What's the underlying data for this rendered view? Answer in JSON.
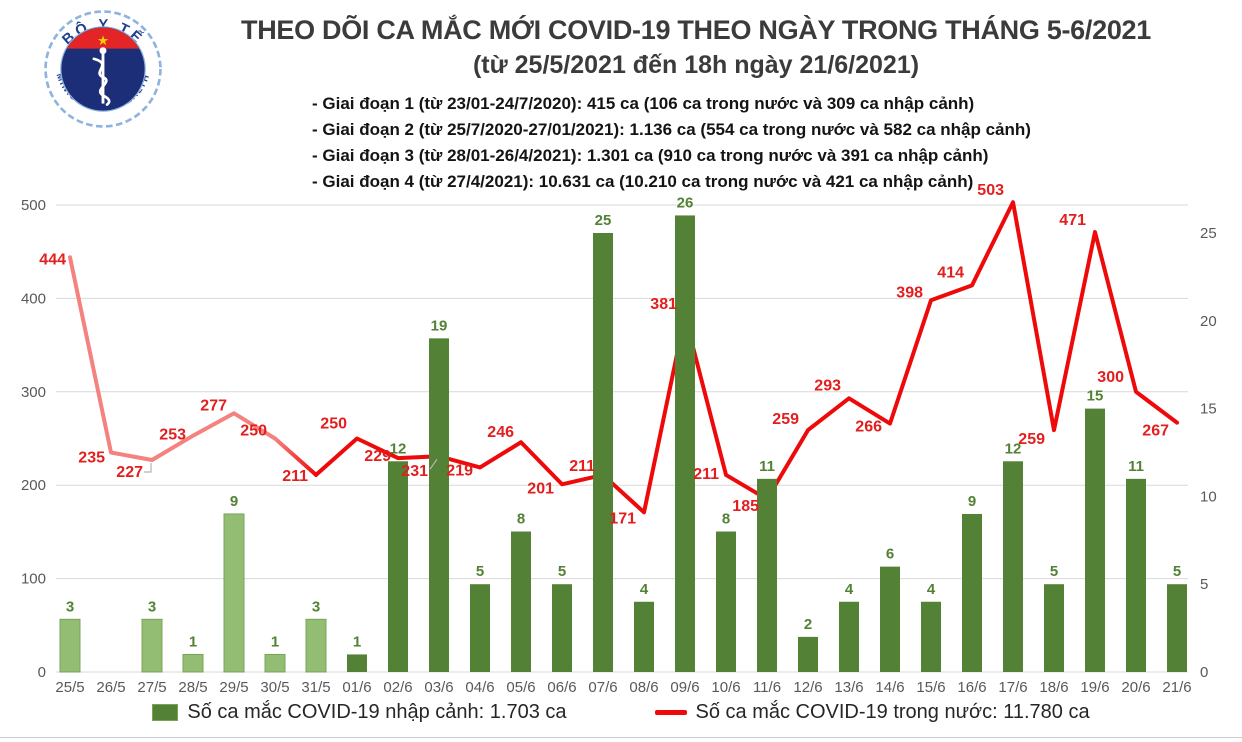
{
  "logo": {
    "top_text": "BỘ Y TẾ",
    "bottom_text": "MINISTRY OF HEALTH"
  },
  "title": {
    "line1": "THEO DÕI CA MẮC MỚI COVID-19 THEO NGÀY TRONG THÁNG 5-6/2021",
    "line2": "(từ 25/5/2021 đến 18h ngày 21/6/2021)"
  },
  "annotations": [
    "- Giai đoạn 1 (từ 23/01-24/7/2020): 415 ca (106 ca trong nước và 309 ca nhập cảnh)",
    "- Giai đoạn 2 (từ 25/7/2020-27/01/2021): 1.136 ca (554 ca trong nước và 582 ca nhập cảnh)",
    "- Giai đoạn 3 (từ 28/01-26/4/2021): 1.301 ca (910 ca trong nước và 391 ca nhập cảnh)",
    "- Giai đoạn 4 (từ 27/4/2021): 10.631 ca (10.210 ca trong nước và 421 ca nhập cảnh)"
  ],
  "chart_data": {
    "type": "bar",
    "subtype": "bar+line dual-axis combo",
    "categories": [
      "25/5",
      "26/5",
      "27/5",
      "28/5",
      "29/5",
      "30/5",
      "31/5",
      "01/6",
      "02/6",
      "03/6",
      "04/6",
      "05/6",
      "06/6",
      "07/6",
      "08/6",
      "09/6",
      "10/6",
      "11/6",
      "12/6",
      "13/6",
      "14/6",
      "15/6",
      "16/6",
      "17/6",
      "18/6",
      "19/6",
      "20/6",
      "21/6"
    ],
    "series": [
      {
        "name": "Số ca mắc COVID-19 nhập cảnh",
        "type": "bar",
        "axis": "right",
        "values": [
          3,
          0,
          3,
          1,
          9,
          1,
          3,
          1,
          12,
          19,
          5,
          8,
          5,
          25,
          4,
          26,
          8,
          11,
          2,
          4,
          6,
          4,
          9,
          12,
          5,
          15,
          11,
          5
        ],
        "light_color_until_index": 6
      },
      {
        "name": "Số ca mắc COVID-19 trong nước",
        "type": "line",
        "axis": "left",
        "values": [
          444,
          235,
          227,
          253,
          277,
          250,
          211,
          250,
          229,
          231,
          219,
          246,
          201,
          211,
          171,
          381,
          211,
          185,
          259,
          293,
          266,
          398,
          414,
          503,
          259,
          471,
          300,
          267
        ],
        "light_color_until_index": 5
      }
    ],
    "left_axis": {
      "min": 0,
      "max": 500,
      "ticks": [
        0,
        100,
        200,
        300,
        400,
        500
      ]
    },
    "right_axis": {
      "min": 0,
      "max": 26.6,
      "ticks": [
        0,
        5,
        10,
        15,
        20,
        25
      ]
    },
    "grid": "horizontal",
    "legend_position": "bottom"
  },
  "legend": [
    {
      "label": "Số ca mắc COVID-19 nhập cảnh: 1.703 ca",
      "marker": "bar-swatch"
    },
    {
      "label": "Số ca mắc COVID-19 trong nước: 11.780 ca",
      "marker": "line-swatch"
    }
  ],
  "colors": {
    "bar_dark": "#538135",
    "bar_light": "#93bd73",
    "bar_light_stroke": "#78a45a",
    "bar_label": "#538135",
    "line_red": "#ee0a0a",
    "line_pink": "#f4827e",
    "line_label": "#e31e1e",
    "axis_text": "#595959",
    "grid": "#d9d9d9",
    "leader": "#b3b3b3"
  }
}
